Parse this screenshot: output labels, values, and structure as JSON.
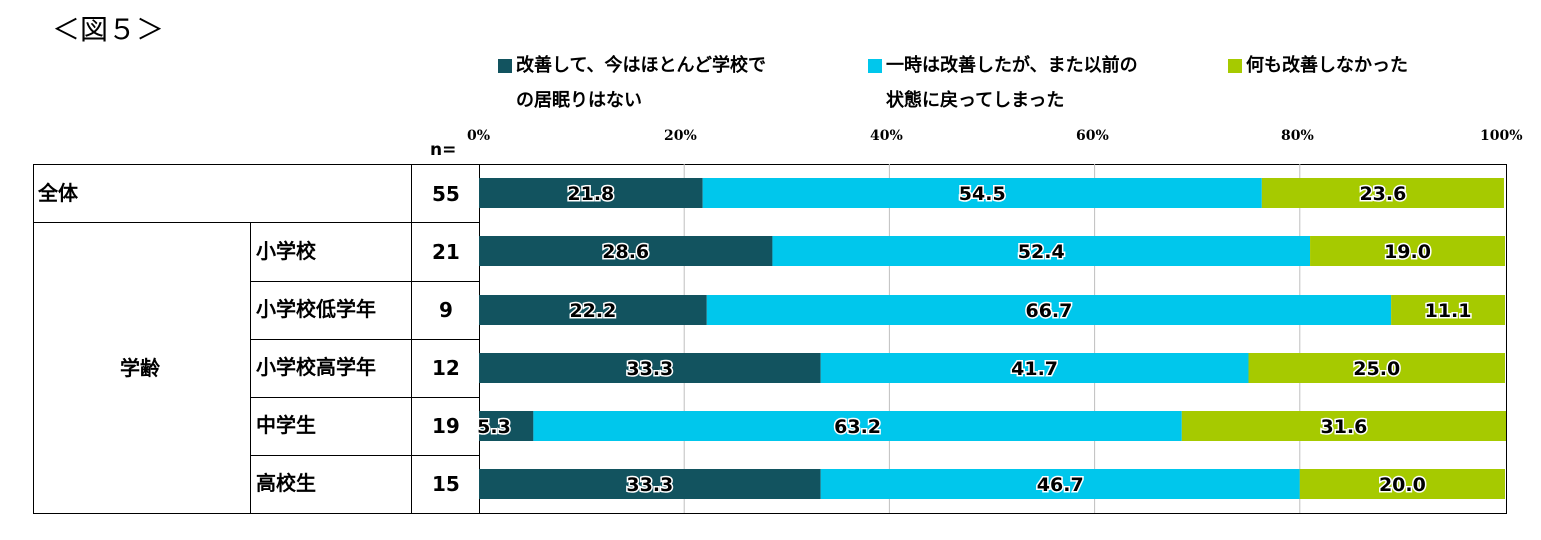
{
  "figure_label": "＜図５＞",
  "legend": [
    {
      "line1": "改善して、今はほとんど学校で",
      "line2": "の居眠りはない",
      "color": "#12535f"
    },
    {
      "line1": "一時は改善したが、また以前の",
      "line2": "状態に戻ってしまった",
      "color": "#00c7ec"
    },
    {
      "line1": "何も改善しなかった",
      "line2": "",
      "color": "#a6ca00"
    }
  ],
  "n_header": "n=",
  "chart_data": {
    "type": "bar",
    "orientation": "horizontal",
    "stacked": true,
    "percent": true,
    "xlim": [
      0,
      100
    ],
    "ticks": [
      "0%",
      "20%",
      "40%",
      "60%",
      "80%",
      "100%"
    ],
    "series": [
      {
        "name": "改善して、今はほとんど学校での居眠りはない",
        "color": "#12535f"
      },
      {
        "name": "一時は改善したが、また以前の状態に戻ってしまった",
        "color": "#00c7ec"
      },
      {
        "name": "何も改善しなかった",
        "color": "#a6ca00"
      }
    ],
    "rows": [
      {
        "group": "全体",
        "label": "",
        "n": "55",
        "values": [
          21.8,
          54.5,
          23.6
        ],
        "labels": [
          "21.8",
          "54.5",
          "23.6"
        ]
      },
      {
        "group": "学齢",
        "label": "小学校",
        "n": "21",
        "values": [
          28.6,
          52.4,
          19.0
        ],
        "labels": [
          "28.6",
          "52.4",
          "19.0"
        ]
      },
      {
        "group": "学齢",
        "label": "小学校低学年",
        "n": "9",
        "values": [
          22.2,
          66.7,
          11.1
        ],
        "labels": [
          "22.2",
          "66.7",
          "11.1"
        ]
      },
      {
        "group": "学齢",
        "label": "小学校高学年",
        "n": "12",
        "values": [
          33.3,
          41.7,
          25.0
        ],
        "labels": [
          "33.3",
          "41.7",
          "25.0"
        ]
      },
      {
        "group": "学齢",
        "label": "中学生",
        "n": "19",
        "values": [
          5.3,
          63.2,
          31.6
        ],
        "labels": [
          "5.3",
          "63.2",
          "31.6"
        ]
      },
      {
        "group": "学齢",
        "label": "高校生",
        "n": "15",
        "values": [
          33.3,
          46.7,
          20.0
        ],
        "labels": [
          "33.3",
          "46.7",
          "20.0"
        ]
      }
    ]
  }
}
